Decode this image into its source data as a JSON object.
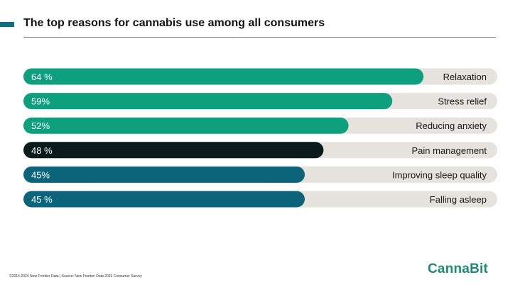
{
  "title": "The top reasons for cannabis use among all consumers",
  "footer_text": "©2014-2024 New Frontier Data | Source: New Frontier Data 2023 Consumer Survey",
  "logo_text": "CannaBit",
  "colors": {
    "title_accent": "#0d6f87",
    "track": "#e6e2dd",
    "logo": "#1d8a72"
  },
  "chart_data": {
    "type": "bar",
    "orientation": "horizontal",
    "title": "The top reasons for cannabis use among all consumers",
    "xlim": [
      0,
      100
    ],
    "categories": [
      "Relaxation",
      "Stress relief",
      "Reducing anxiety",
      "Pain management",
      "Improving sleep quality",
      "Falling asleep"
    ],
    "values": [
      64,
      59,
      52,
      48,
      45,
      45
    ],
    "value_labels": [
      "64 %",
      "59%",
      "52%",
      "48 %",
      "45%",
      "45 %"
    ],
    "bar_colors": [
      "#0ea07e",
      "#0ea07e",
      "#0ea07e",
      "#0b1b1b",
      "#0b6479",
      "#0b6479"
    ]
  }
}
